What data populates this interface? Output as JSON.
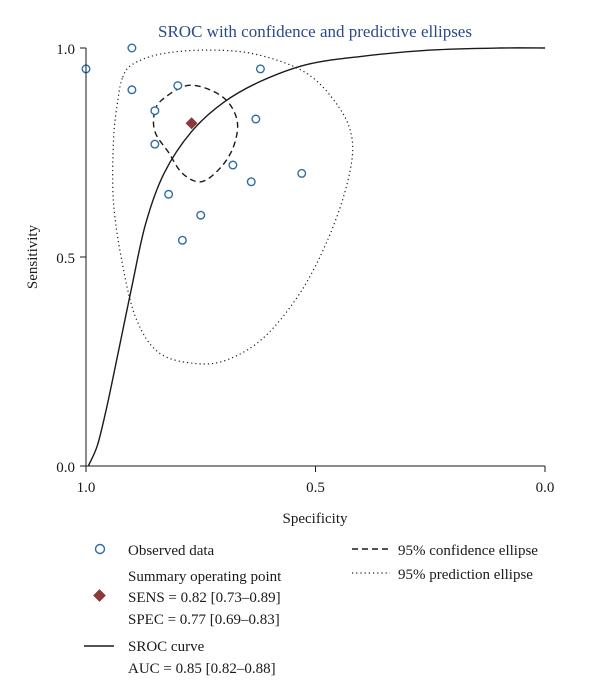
{
  "chart_data": {
    "type": "scatter",
    "title": "SROC with confidence and predictive ellipses",
    "xlabel": "Specificity",
    "ylabel": "Sensitivity",
    "x_reversed": true,
    "xlim": [
      1.0,
      0.0
    ],
    "ylim": [
      0.0,
      1.0
    ],
    "x_ticks": [
      "1.0",
      "0.5",
      "0.0"
    ],
    "y_ticks": [
      "0.0",
      "0.5",
      "1.0"
    ],
    "grid": false,
    "legend_position": "bottom",
    "observed_data": [
      {
        "spec": 1.0,
        "sens": 0.95
      },
      {
        "spec": 0.9,
        "sens": 1.0
      },
      {
        "spec": 0.9,
        "sens": 0.9
      },
      {
        "spec": 0.8,
        "sens": 0.91
      },
      {
        "spec": 0.85,
        "sens": 0.85
      },
      {
        "spec": 0.62,
        "sens": 0.95
      },
      {
        "spec": 0.63,
        "sens": 0.83
      },
      {
        "spec": 0.85,
        "sens": 0.77
      },
      {
        "spec": 0.68,
        "sens": 0.72
      },
      {
        "spec": 0.64,
        "sens": 0.68
      },
      {
        "spec": 0.53,
        "sens": 0.7
      },
      {
        "spec": 0.82,
        "sens": 0.65
      },
      {
        "spec": 0.75,
        "sens": 0.6
      },
      {
        "spec": 0.79,
        "sens": 0.54
      }
    ],
    "summary_point": {
      "spec": 0.77,
      "sens": 0.82
    },
    "confidence_ellipse": [
      {
        "spec": 0.85,
        "sens": 0.85
      },
      {
        "spec": 0.83,
        "sens": 0.88
      },
      {
        "spec": 0.78,
        "sens": 0.91
      },
      {
        "spec": 0.73,
        "sens": 0.9
      },
      {
        "spec": 0.69,
        "sens": 0.87
      },
      {
        "spec": 0.67,
        "sens": 0.82
      },
      {
        "spec": 0.68,
        "sens": 0.76
      },
      {
        "spec": 0.71,
        "sens": 0.71
      },
      {
        "spec": 0.75,
        "sens": 0.68
      },
      {
        "spec": 0.79,
        "sens": 0.7
      },
      {
        "spec": 0.82,
        "sens": 0.75
      },
      {
        "spec": 0.85,
        "sens": 0.8
      }
    ],
    "prediction_ellipse": [
      {
        "spec": 0.92,
        "sens": 0.93
      },
      {
        "spec": 0.9,
        "sens": 0.96
      },
      {
        "spec": 0.84,
        "sens": 0.985
      },
      {
        "spec": 0.74,
        "sens": 0.995
      },
      {
        "spec": 0.63,
        "sens": 0.985
      },
      {
        "spec": 0.52,
        "sens": 0.94
      },
      {
        "spec": 0.45,
        "sens": 0.86
      },
      {
        "spec": 0.42,
        "sens": 0.78
      },
      {
        "spec": 0.43,
        "sens": 0.68
      },
      {
        "spec": 0.47,
        "sens": 0.55
      },
      {
        "spec": 0.53,
        "sens": 0.42
      },
      {
        "spec": 0.61,
        "sens": 0.31
      },
      {
        "spec": 0.69,
        "sens": 0.255
      },
      {
        "spec": 0.76,
        "sens": 0.245
      },
      {
        "spec": 0.84,
        "sens": 0.27
      },
      {
        "spec": 0.89,
        "sens": 0.35
      },
      {
        "spec": 0.92,
        "sens": 0.48
      },
      {
        "spec": 0.94,
        "sens": 0.63
      },
      {
        "spec": 0.94,
        "sens": 0.78
      },
      {
        "spec": 0.93,
        "sens": 0.88
      }
    ],
    "sroc_curve": [
      {
        "spec": 0.995,
        "sens": 0.0
      },
      {
        "spec": 0.975,
        "sens": 0.05
      },
      {
        "spec": 0.955,
        "sens": 0.14
      },
      {
        "spec": 0.93,
        "sens": 0.27
      },
      {
        "spec": 0.9,
        "sens": 0.43
      },
      {
        "spec": 0.87,
        "sens": 0.58
      },
      {
        "spec": 0.83,
        "sens": 0.7
      },
      {
        "spec": 0.77,
        "sens": 0.8
      },
      {
        "spec": 0.7,
        "sens": 0.87
      },
      {
        "spec": 0.62,
        "sens": 0.92
      },
      {
        "spec": 0.52,
        "sens": 0.96
      },
      {
        "spec": 0.4,
        "sens": 0.98
      },
      {
        "spec": 0.25,
        "sens": 0.995
      },
      {
        "spec": 0.1,
        "sens": 1.0
      },
      {
        "spec": 0.0,
        "sens": 1.0
      }
    ],
    "colors": {
      "observed_marker": "#2e6da4",
      "summary_marker": "#8b3a3a",
      "title": "#2b4a8b",
      "lines": "#1a1a1a"
    }
  },
  "legend": {
    "observed": "Observed data",
    "summary_title": "Summary operating point",
    "sens": "SENS = 0.82 [0.73–0.89]",
    "spec": "SPEC = 0.77 [0.69–0.83]",
    "sroc": "SROC curve",
    "auc": "AUC = 0.85 [0.82–0.88]",
    "conf": "95% confidence ellipse",
    "pred": "95% prediction ellipse"
  }
}
